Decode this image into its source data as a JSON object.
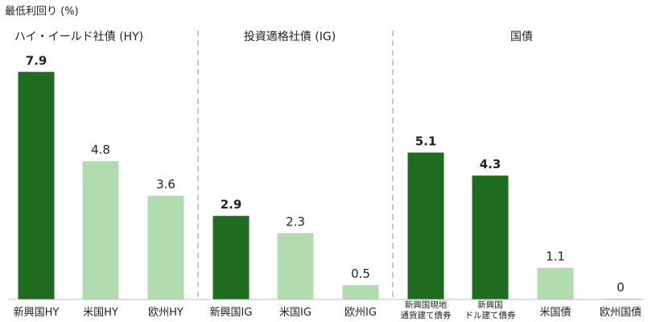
{
  "chart_data": {
    "type": "bar",
    "ylabel": "最低利回り (%)",
    "ylim": [
      0,
      8.3
    ],
    "groups": [
      {
        "title": "ハイ・イールド社債 (HY)",
        "items": [
          {
            "category": "新興国HY",
            "value": 7.9,
            "display": "7.9",
            "emphasis": true
          },
          {
            "category": "米国HY",
            "value": 4.8,
            "display": "4.8",
            "emphasis": false
          },
          {
            "category": "欧州HY",
            "value": 3.6,
            "display": "3.6",
            "emphasis": false
          }
        ]
      },
      {
        "title": "投資適格社債 (IG)",
        "items": [
          {
            "category": "新興国IG",
            "value": 2.9,
            "display": "2.9",
            "emphasis": true
          },
          {
            "category": "米国IG",
            "value": 2.3,
            "display": "2.3",
            "emphasis": false
          },
          {
            "category": "欧州IG",
            "value": 0.5,
            "display": "0.5",
            "emphasis": false
          }
        ]
      },
      {
        "title": "国債",
        "items": [
          {
            "category": "新興国現地\n通貨建て債券",
            "value": 5.1,
            "display": "5.1",
            "emphasis": true
          },
          {
            "category": "新興国\nドル建て債券",
            "value": 4.3,
            "display": "4.3",
            "emphasis": true
          },
          {
            "category": "米国債",
            "value": 1.1,
            "display": "1.1",
            "emphasis": false
          },
          {
            "category": "欧州国債",
            "value": 0,
            "display": "0",
            "emphasis": false
          }
        ]
      }
    ],
    "colors": {
      "emphasis": "#1f6b1f",
      "normal": "#b2dcb0",
      "divider": "#aaaaaa",
      "baseline": "#bfbfbf"
    }
  }
}
